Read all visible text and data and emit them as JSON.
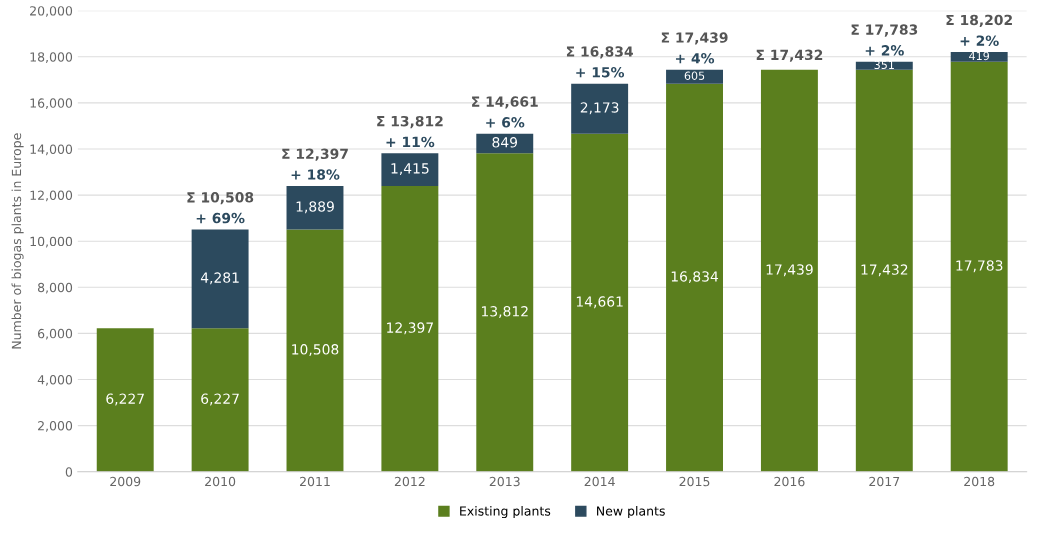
{
  "chart_data": {
    "type": "bar",
    "stacked": true,
    "categories": [
      "2009",
      "2010",
      "2011",
      "2012",
      "2013",
      "2014",
      "2015",
      "2016",
      "2017",
      "2018"
    ],
    "ylabel": "Number of biogas plants in Europe",
    "series": [
      {
        "name": "Existing plants",
        "color": "#5b7f1e",
        "values": [
          6227,
          6227,
          10508,
          12397,
          13812,
          14661,
          16834,
          17439,
          17432,
          17783
        ],
        "value_labels": [
          "6,227",
          "6,227",
          "10,508",
          "12,397",
          "13,812",
          "14,661",
          "16,834",
          "17,439",
          "17,432",
          "17,783"
        ]
      },
      {
        "name": "New plants",
        "color": "#2c4a5e",
        "values": [
          null,
          4281,
          1889,
          1415,
          849,
          2173,
          605,
          null,
          351,
          419
        ],
        "value_labels": [
          null,
          "4,281",
          "1,889",
          "1,415",
          "849",
          "2,173",
          "605",
          null,
          "351",
          "419"
        ]
      }
    ],
    "totals": [
      null,
      "Σ 10,508",
      "Σ 12,397",
      "Σ 13,812",
      "Σ 14,661",
      "Σ 16,834",
      "Σ 17,439",
      "Σ 17,432",
      "Σ 17,783",
      "Σ 18,202"
    ],
    "annotations": [
      {
        "text": "+ 69%",
        "x": "2010",
        "y": 10508
      },
      {
        "text": "+ 18%",
        "x": "2011",
        "y": 12397
      },
      {
        "text": "+ 11%",
        "x": "2012",
        "y": 13812
      },
      {
        "text": "+ 6%",
        "x": "2013",
        "y": 14661
      },
      {
        "text": "+ 15%",
        "x": "2014",
        "y": 16834
      },
      {
        "text": "+ 4%",
        "x": "2015",
        "y": 17439
      },
      {
        "text": "+ 2%",
        "x": "2017",
        "y": 17783
      },
      {
        "text": "+ 2%",
        "x": "2018",
        "y": 18202
      }
    ],
    "ylim": [
      0,
      20000
    ],
    "yticks": [
      {
        "value": 0,
        "label": "0"
      },
      {
        "value": 2000,
        "label": "2,000"
      },
      {
        "value": 4000,
        "label": "4,000"
      },
      {
        "value": 6000,
        "label": "6,000"
      },
      {
        "value": 8000,
        "label": "8,000"
      },
      {
        "value": 10000,
        "label": "10,000"
      },
      {
        "value": 12000,
        "label": "12,000"
      },
      {
        "value": 14000,
        "label": "14,000"
      },
      {
        "value": 16000,
        "label": "16,000"
      },
      {
        "value": 18000,
        "label": "18,000"
      },
      {
        "value": 20000,
        "label": "20,000"
      }
    ],
    "grid": "y",
    "legend": "bottom"
  }
}
